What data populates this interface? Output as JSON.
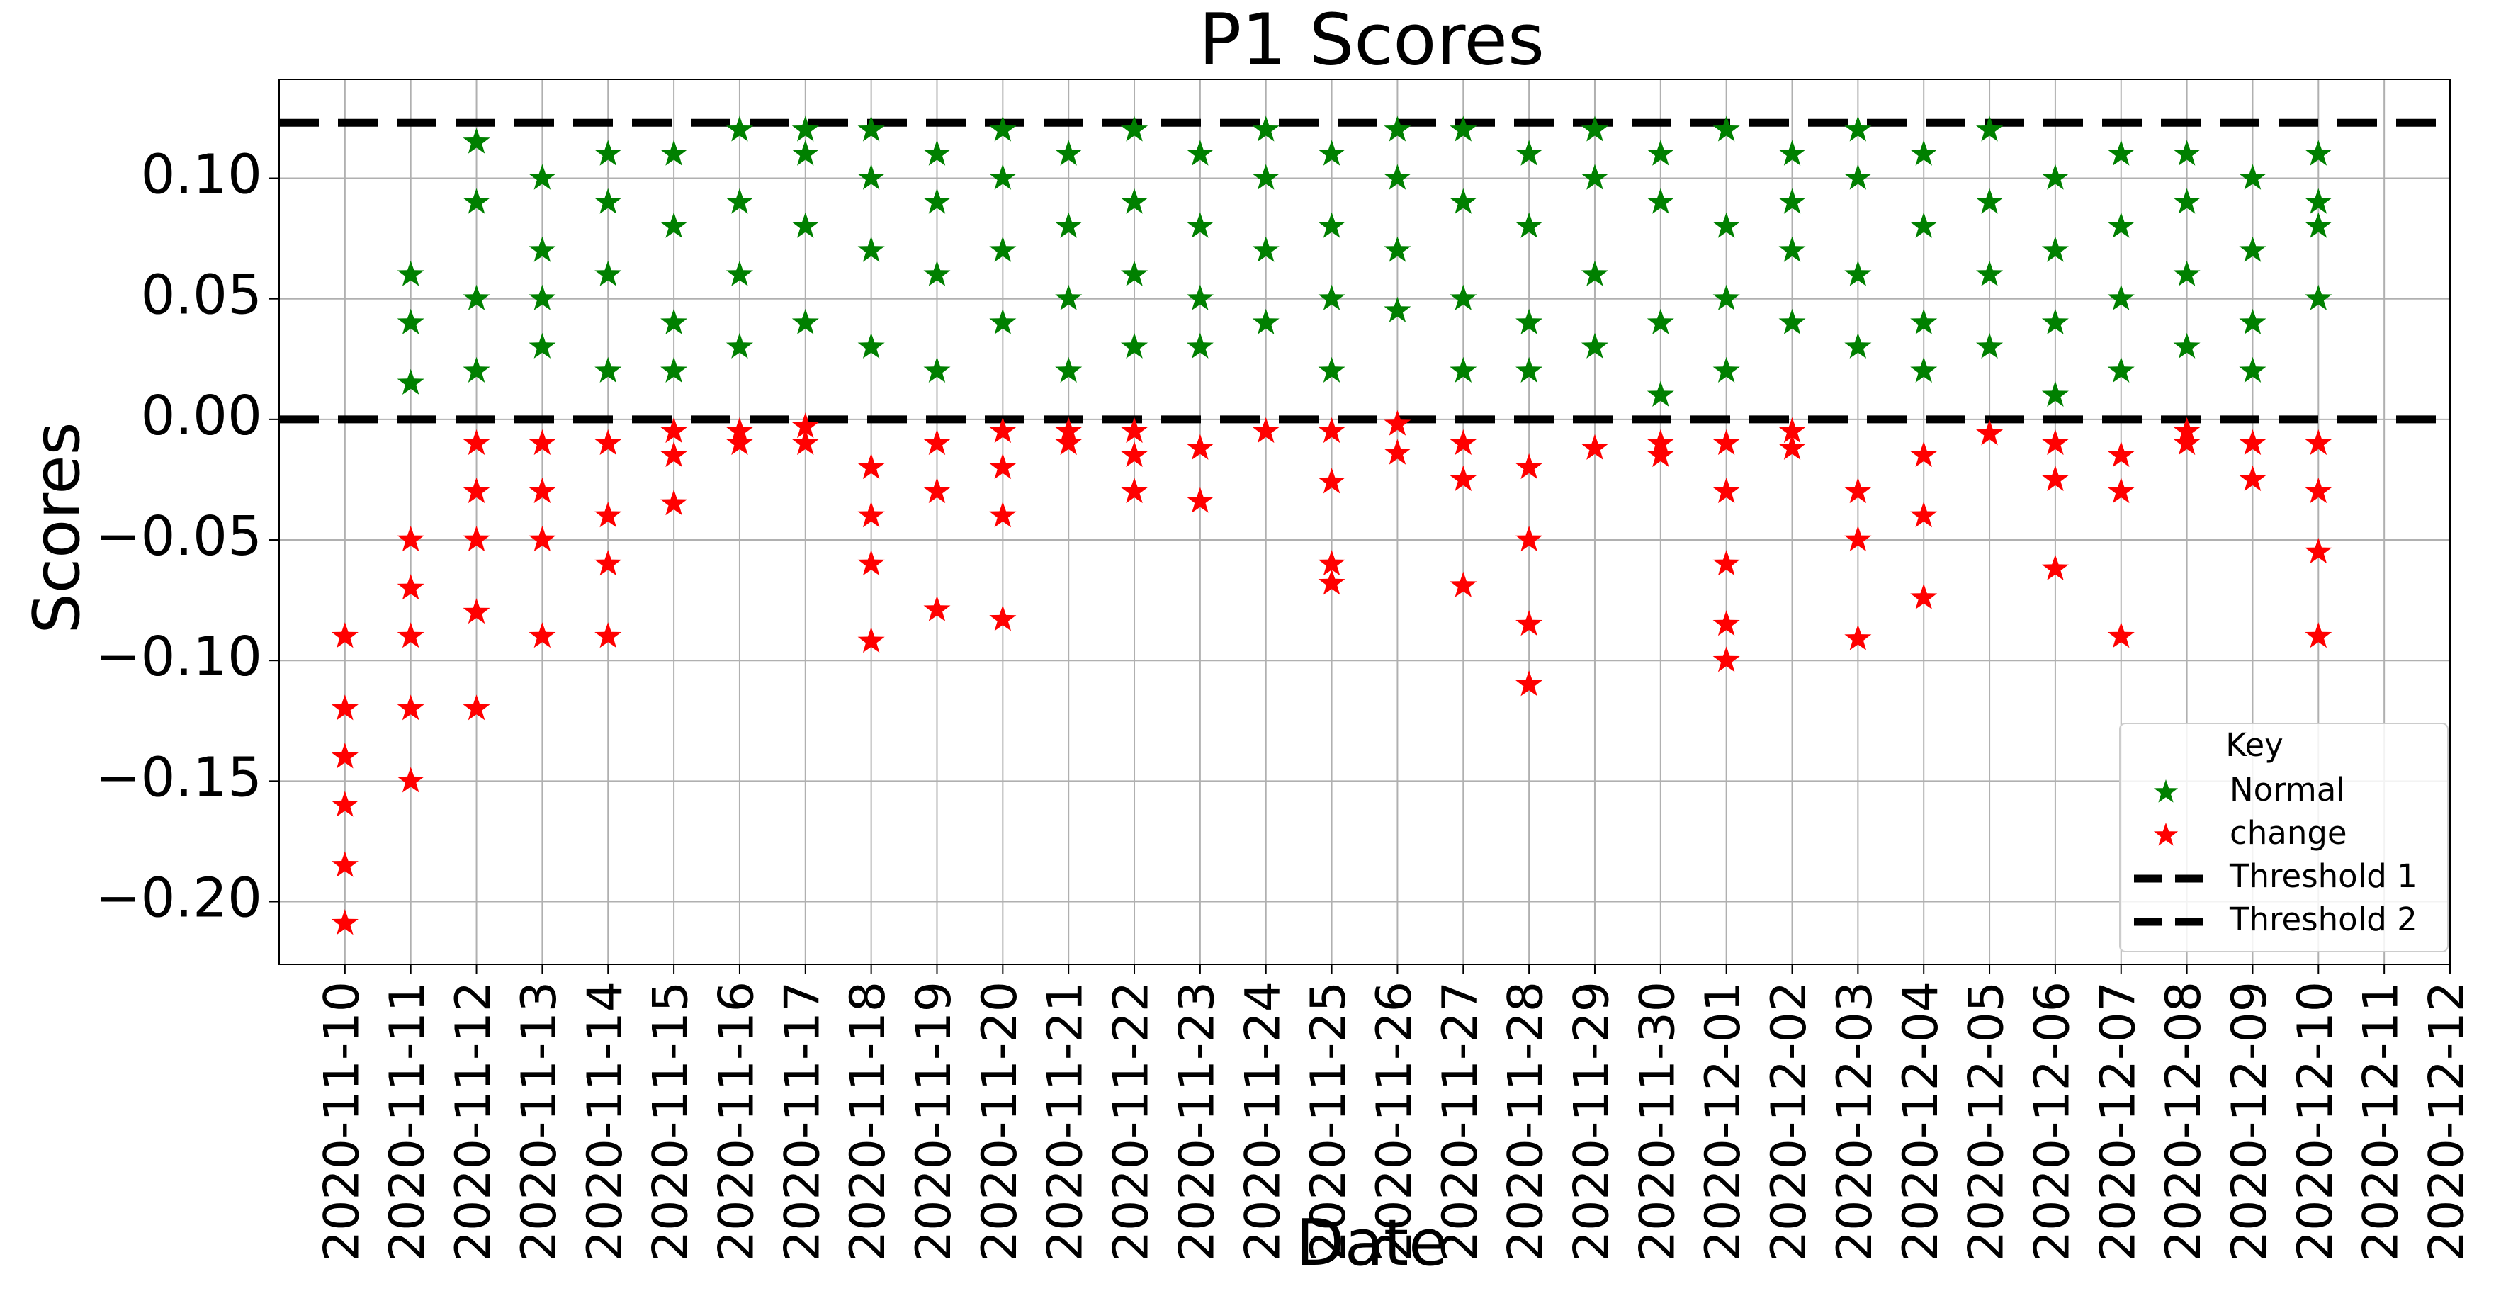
{
  "chart_data": {
    "type": "scatter",
    "title": "P1 Scores",
    "x_label": "Date",
    "y_label": "Scores",
    "xlim": [
      "2020-11-09",
      "2020-12-12"
    ],
    "xticks": [
      "2020-11-10",
      "2020-11-11",
      "2020-11-12",
      "2020-11-13",
      "2020-11-14",
      "2020-11-15",
      "2020-11-16",
      "2020-11-17",
      "2020-11-18",
      "2020-11-19",
      "2020-11-20",
      "2020-11-21",
      "2020-11-22",
      "2020-11-23",
      "2020-11-24",
      "2020-11-25",
      "2020-11-26",
      "2020-11-27",
      "2020-11-28",
      "2020-11-29",
      "2020-11-30",
      "2020-12-01",
      "2020-12-02",
      "2020-12-03",
      "2020-12-04",
      "2020-12-05",
      "2020-12-06",
      "2020-12-07",
      "2020-12-08",
      "2020-12-09",
      "2020-12-10",
      "2020-12-11",
      "2020-12-12"
    ],
    "ylim": [
      -0.226,
      0.141
    ],
    "yticks": [
      {
        "value": -0.2,
        "label": "−0.20"
      },
      {
        "value": -0.15,
        "label": "−0.15"
      },
      {
        "value": -0.1,
        "label": "−0.10"
      },
      {
        "value": -0.05,
        "label": "−0.05"
      },
      {
        "value": 0,
        "label": "0.00"
      },
      {
        "value": 0.05,
        "label": "0.05"
      },
      {
        "value": 0.1,
        "label": "0.10"
      }
    ],
    "grid": true,
    "legend_title": "Key",
    "legend_position": "lower right",
    "series": [
      {
        "name": "Normal",
        "color": "#008000",
        "x": [
          "2020-11-11",
          "2020-11-11",
          "2020-11-11",
          "2020-11-12",
          "2020-11-12",
          "2020-11-12",
          "2020-11-12",
          "2020-11-13",
          "2020-11-13",
          "2020-11-13",
          "2020-11-13",
          "2020-11-14",
          "2020-11-14",
          "2020-11-14",
          "2020-11-14",
          "2020-11-15",
          "2020-11-15",
          "2020-11-15",
          "2020-11-15",
          "2020-11-16",
          "2020-11-16",
          "2020-11-16",
          "2020-11-16",
          "2020-11-17",
          "2020-11-17",
          "2020-11-17",
          "2020-11-17",
          "2020-11-18",
          "2020-11-18",
          "2020-11-18",
          "2020-11-18",
          "2020-11-19",
          "2020-11-19",
          "2020-11-19",
          "2020-11-19",
          "2020-11-20",
          "2020-11-20",
          "2020-11-20",
          "2020-11-20",
          "2020-11-21",
          "2020-11-21",
          "2020-11-21",
          "2020-11-21",
          "2020-11-22",
          "2020-11-22",
          "2020-11-22",
          "2020-11-22",
          "2020-11-23",
          "2020-11-23",
          "2020-11-23",
          "2020-11-23",
          "2020-11-24",
          "2020-11-24",
          "2020-11-24",
          "2020-11-24",
          "2020-11-25",
          "2020-11-25",
          "2020-11-25",
          "2020-11-25",
          "2020-11-26",
          "2020-11-26",
          "2020-11-26",
          "2020-11-26",
          "2020-11-27",
          "2020-11-27",
          "2020-11-27",
          "2020-11-27",
          "2020-11-28",
          "2020-11-28",
          "2020-11-28",
          "2020-11-28",
          "2020-11-29",
          "2020-11-29",
          "2020-11-29",
          "2020-11-29",
          "2020-11-30",
          "2020-11-30",
          "2020-11-30",
          "2020-11-30",
          "2020-12-01",
          "2020-12-01",
          "2020-12-01",
          "2020-12-01",
          "2020-12-02",
          "2020-12-02",
          "2020-12-02",
          "2020-12-02",
          "2020-12-03",
          "2020-12-03",
          "2020-12-03",
          "2020-12-03",
          "2020-12-04",
          "2020-12-04",
          "2020-12-04",
          "2020-12-04",
          "2020-12-05",
          "2020-12-05",
          "2020-12-05",
          "2020-12-05",
          "2020-12-06",
          "2020-12-06",
          "2020-12-06",
          "2020-12-06",
          "2020-12-07",
          "2020-12-07",
          "2020-12-07",
          "2020-12-07",
          "2020-12-08",
          "2020-12-08",
          "2020-12-08",
          "2020-12-08",
          "2020-12-09",
          "2020-12-09",
          "2020-12-09",
          "2020-12-09",
          "2020-12-10",
          "2020-12-10",
          "2020-12-10",
          "2020-12-10"
        ],
        "values": [
          0.015,
          0.04,
          0.06,
          0.05,
          0.09,
          0.115,
          0.02,
          0.07,
          0.1,
          0.03,
          0.05,
          0.09,
          0.02,
          0.06,
          0.11,
          0.11,
          0.08,
          0.04,
          0.02,
          0.12,
          0.09,
          0.06,
          0.03,
          0.11,
          0.08,
          0.04,
          0.12,
          0.1,
          0.07,
          0.03,
          0.12,
          0.09,
          0.06,
          0.02,
          0.11,
          0.1,
          0.07,
          0.04,
          0.12,
          0.11,
          0.08,
          0.02,
          0.05,
          0.09,
          0.12,
          0.06,
          0.03,
          0.11,
          0.05,
          0.08,
          0.03,
          0.1,
          0.04,
          0.07,
          0.12,
          0.11,
          0.05,
          0.08,
          0.02,
          0.1,
          0.045,
          0.07,
          0.12,
          0.09,
          0.05,
          0.12,
          0.02,
          0.11,
          0.04,
          0.08,
          0.02,
          0.1,
          0.06,
          0.03,
          0.12,
          0.09,
          0.04,
          0.11,
          0.01,
          0.12,
          0.08,
          0.05,
          0.02,
          0.11,
          0.09,
          0.04,
          0.07,
          0.1,
          0.06,
          0.03,
          0.12,
          0.11,
          0.08,
          0.04,
          0.02,
          0.09,
          0.06,
          0.12,
          0.03,
          0.1,
          0.07,
          0.04,
          0.01,
          0.11,
          0.08,
          0.02,
          0.05,
          0.11,
          0.09,
          0.06,
          0.03,
          0.1,
          0.07,
          0.04,
          0.02,
          0.11,
          0.08,
          0.05,
          0.09
        ]
      },
      {
        "name": "change",
        "color": "#ff0000",
        "x": [
          "2020-11-10",
          "2020-11-10",
          "2020-11-10",
          "2020-11-10",
          "2020-11-10",
          "2020-11-10",
          "2020-11-11",
          "2020-11-11",
          "2020-11-11",
          "2020-11-11",
          "2020-11-11",
          "2020-11-12",
          "2020-11-12",
          "2020-11-12",
          "2020-11-12",
          "2020-11-12",
          "2020-11-13",
          "2020-11-13",
          "2020-11-13",
          "2020-11-13",
          "2020-11-14",
          "2020-11-14",
          "2020-11-14",
          "2020-11-14",
          "2020-11-15",
          "2020-11-15",
          "2020-11-15",
          "2020-11-16",
          "2020-11-16",
          "2020-11-17",
          "2020-11-17",
          "2020-11-18",
          "2020-11-18",
          "2020-11-18",
          "2020-11-18",
          "2020-11-19",
          "2020-11-19",
          "2020-11-19",
          "2020-11-20",
          "2020-11-20",
          "2020-11-20",
          "2020-11-20",
          "2020-11-21",
          "2020-11-21",
          "2020-11-22",
          "2020-11-22",
          "2020-11-22",
          "2020-11-23",
          "2020-11-23",
          "2020-11-24",
          "2020-11-25",
          "2020-11-25",
          "2020-11-25",
          "2020-11-25",
          "2020-11-26",
          "2020-11-26",
          "2020-11-27",
          "2020-11-27",
          "2020-11-27",
          "2020-11-28",
          "2020-11-28",
          "2020-11-28",
          "2020-11-28",
          "2020-11-29",
          "2020-11-30",
          "2020-11-30",
          "2020-12-01",
          "2020-12-01",
          "2020-12-01",
          "2020-12-01",
          "2020-12-01",
          "2020-12-02",
          "2020-12-02",
          "2020-12-03",
          "2020-12-03",
          "2020-12-03",
          "2020-12-04",
          "2020-12-04",
          "2020-12-04",
          "2020-12-05",
          "2020-12-06",
          "2020-12-06",
          "2020-12-06",
          "2020-12-07",
          "2020-12-07",
          "2020-12-07",
          "2020-12-08",
          "2020-12-08",
          "2020-12-09",
          "2020-12-09",
          "2020-12-10",
          "2020-12-10",
          "2020-12-10",
          "2020-12-10"
        ],
        "values": [
          -0.209,
          -0.185,
          -0.16,
          -0.14,
          -0.12,
          -0.09,
          -0.15,
          -0.12,
          -0.09,
          -0.07,
          -0.05,
          -0.12,
          -0.08,
          -0.05,
          -0.03,
          -0.01,
          -0.09,
          -0.05,
          -0.03,
          -0.01,
          -0.09,
          -0.06,
          -0.04,
          -0.01,
          -0.035,
          -0.015,
          -0.005,
          -0.01,
          -0.005,
          -0.01,
          -0.003,
          -0.092,
          -0.06,
          -0.04,
          -0.02,
          -0.079,
          -0.03,
          -0.01,
          -0.083,
          -0.04,
          -0.02,
          -0.005,
          -0.01,
          -0.005,
          -0.03,
          -0.015,
          -0.005,
          -0.034,
          -0.012,
          -0.005,
          -0.068,
          -0.06,
          -0.026,
          -0.005,
          -0.014,
          -0.002,
          -0.069,
          -0.025,
          -0.01,
          -0.11,
          -0.085,
          -0.05,
          -0.02,
          -0.012,
          -0.01,
          -0.015,
          -0.1,
          -0.085,
          -0.06,
          -0.03,
          -0.01,
          -0.012,
          -0.005,
          -0.091,
          -0.05,
          -0.03,
          -0.074,
          -0.04,
          -0.015,
          -0.006,
          -0.062,
          -0.025,
          -0.01,
          -0.09,
          -0.03,
          -0.015,
          -0.005,
          -0.01,
          -0.025,
          -0.01,
          -0.09,
          -0.055,
          -0.03,
          -0.01
        ]
      }
    ],
    "hlines": [
      {
        "name": "Threshold 1",
        "value": 0.123,
        "color": "#000000"
      },
      {
        "name": "Threshold 2",
        "value": 0,
        "color": "#000000"
      }
    ]
  }
}
